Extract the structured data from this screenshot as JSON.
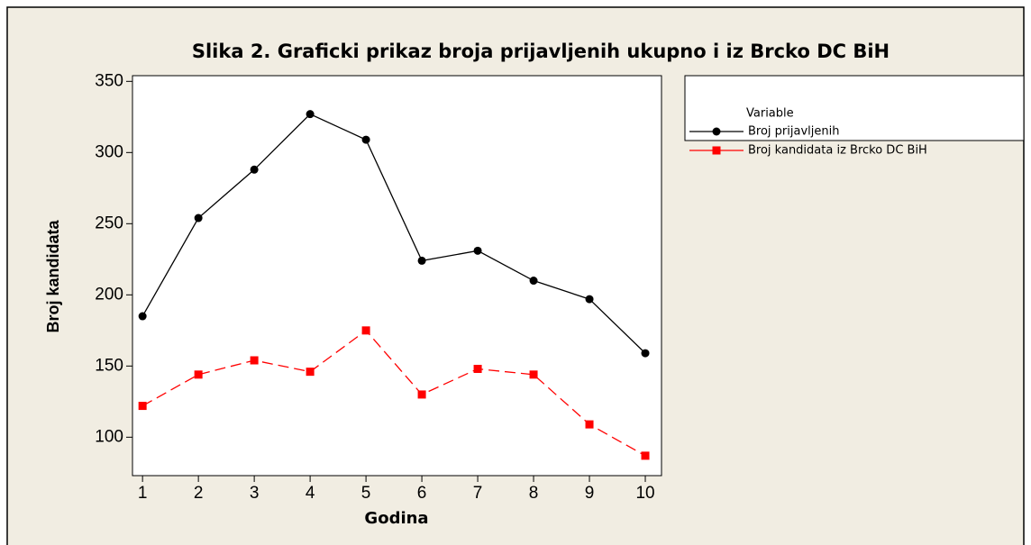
{
  "chart_data": {
    "type": "line",
    "title": "Slika 2. Graficki prikaz broja prijavljenih ukupno i iz Brcko DC BiH",
    "xlabel": "Godina",
    "ylabel": "Broj kandidata",
    "x": [
      1,
      2,
      3,
      4,
      5,
      6,
      7,
      8,
      9,
      10
    ],
    "legend_title": "Variable",
    "series": [
      {
        "name": "Broj prijavljenih",
        "color": "#000000",
        "linestyle": "solid",
        "marker": "circle",
        "values": [
          185,
          254,
          288,
          327,
          309,
          224,
          231,
          210,
          197,
          159
        ]
      },
      {
        "name": "Broj kandidata iz Brcko DC BiH",
        "color": "#ff0000",
        "linestyle": "dashed",
        "marker": "square",
        "values": [
          122,
          144,
          154,
          146,
          175,
          130,
          148,
          144,
          109,
          87
        ]
      }
    ],
    "xlim": [
      0.82,
      10.29
    ],
    "xticks": [
      1,
      2,
      3,
      4,
      5,
      6,
      7,
      8,
      9,
      10
    ],
    "ylim": [
      73,
      354
    ],
    "yticks": [
      100,
      150,
      200,
      250,
      300,
      350
    ],
    "legend": "right"
  }
}
